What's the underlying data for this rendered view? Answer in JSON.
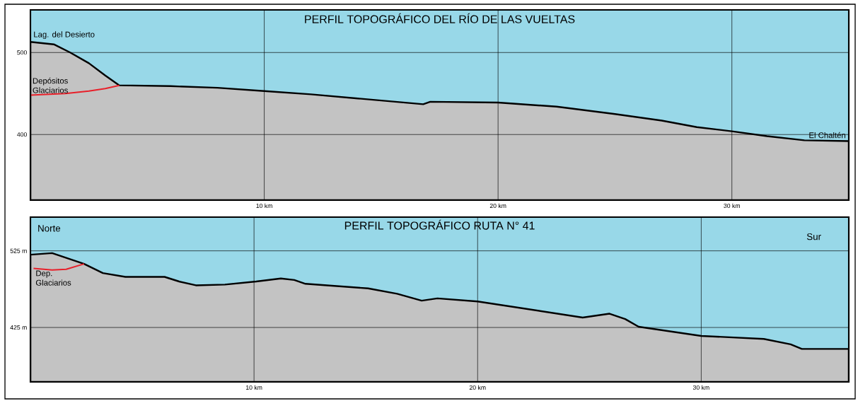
{
  "chart_data": [
    {
      "type": "area",
      "title": "PERFIL TOPOGRÁFICO DEL RÍO DE LAS VUELTAS",
      "series": [
        {
          "color": "#c3c3c3",
          "x": [
            0,
            1,
            1.7,
            2.5,
            3.2,
            3.8,
            6,
            8,
            10,
            12,
            14,
            16.8,
            17.1,
            20,
            22.5,
            25,
            27,
            28.5,
            30,
            31.5,
            33.1,
            35
          ],
          "values": [
            513,
            510,
            500,
            487,
            472,
            460,
            459,
            457,
            453,
            449,
            444,
            437,
            440,
            439,
            434,
            425,
            417,
            409,
            404,
            398,
            393,
            392
          ]
        },
        {
          "type": "line",
          "name": "Depósitos Glaciarios",
          "color": "#e8202a",
          "x": [
            0,
            1.5,
            2.5,
            3.2,
            3.8
          ],
          "values": [
            448,
            450,
            453,
            456,
            460
          ]
        }
      ],
      "xlim": [
        0,
        35
      ],
      "ylim": [
        320,
        552
      ],
      "xticks": [
        {
          "value": 10,
          "label": "10 km"
        },
        {
          "value": 20,
          "label": "20 km"
        },
        {
          "value": 30,
          "label": "30 km"
        }
      ],
      "yticks": [
        {
          "value": 400,
          "label": "400"
        },
        {
          "value": 500,
          "label": "500"
        }
      ],
      "grid": true,
      "bands": [
        {
          "axis": "y",
          "from": 320,
          "to": 552,
          "color": "#98d8e8"
        }
      ],
      "annotations": [
        {
          "text": "Lag. del Desierto",
          "x": 0,
          "y": 513
        },
        {
          "text": "El Chaltén",
          "x": 35,
          "y": 392
        }
      ]
    },
    {
      "type": "area",
      "title": "PERFIL TOPOGRÁFICO RUTA N° 41",
      "series": [
        {
          "color": "#c3c3c3",
          "x": [
            0,
            0.97,
            2.4,
            3.24,
            4.25,
            6.0,
            6.65,
            7.4,
            8.7,
            10.1,
            11.2,
            11.8,
            12.3,
            15.1,
            16.4,
            17.5,
            18.2,
            20,
            24.7,
            25.9,
            26.6,
            27.2,
            30,
            32.8,
            34.0,
            34.5,
            36.2,
            36.6
          ],
          "values": [
            520,
            522,
            508,
            496,
            491,
            491,
            485,
            480,
            481,
            485,
            489,
            487,
            482,
            476,
            469,
            460,
            463,
            459,
            438,
            443,
            436,
            426,
            414,
            410,
            403,
            397,
            397,
            397
          ]
        },
        {
          "type": "line",
          "name": "Dep. Glaciarios",
          "color": "#e8202a",
          "x": [
            0.14,
            0.97,
            1.6,
            2.4
          ],
          "values": [
            502,
            500,
            501,
            508
          ]
        }
      ],
      "xlim": [
        0,
        36.6
      ],
      "ylim": [
        354,
        569
      ],
      "xticks": [
        {
          "value": 10,
          "label": "10 km"
        },
        {
          "value": 20,
          "label": "20 km"
        },
        {
          "value": 30,
          "label": "30 km"
        }
      ],
      "yticks": [
        {
          "value": 425,
          "label": "425 m"
        },
        {
          "value": 525,
          "label": "525 m"
        }
      ],
      "grid": true,
      "bands": [
        {
          "axis": "y",
          "from": 354,
          "to": 569,
          "color": "#98d8e8"
        }
      ],
      "annotations": [
        "Norte",
        "Sur"
      ]
    }
  ]
}
